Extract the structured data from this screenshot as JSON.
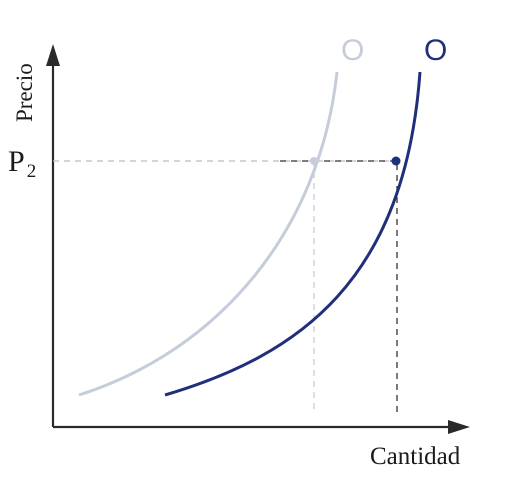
{
  "chart_data": {
    "type": "line",
    "xlabel": "Cantidad",
    "ylabel": "Precio",
    "grid": false,
    "price_mark": {
      "label": "P",
      "subscript": "2"
    },
    "series": [
      {
        "name": "O",
        "color": "#c5ccda",
        "values": []
      },
      {
        "name": "O",
        "color": "#1f2f7a",
        "values": []
      }
    ]
  }
}
